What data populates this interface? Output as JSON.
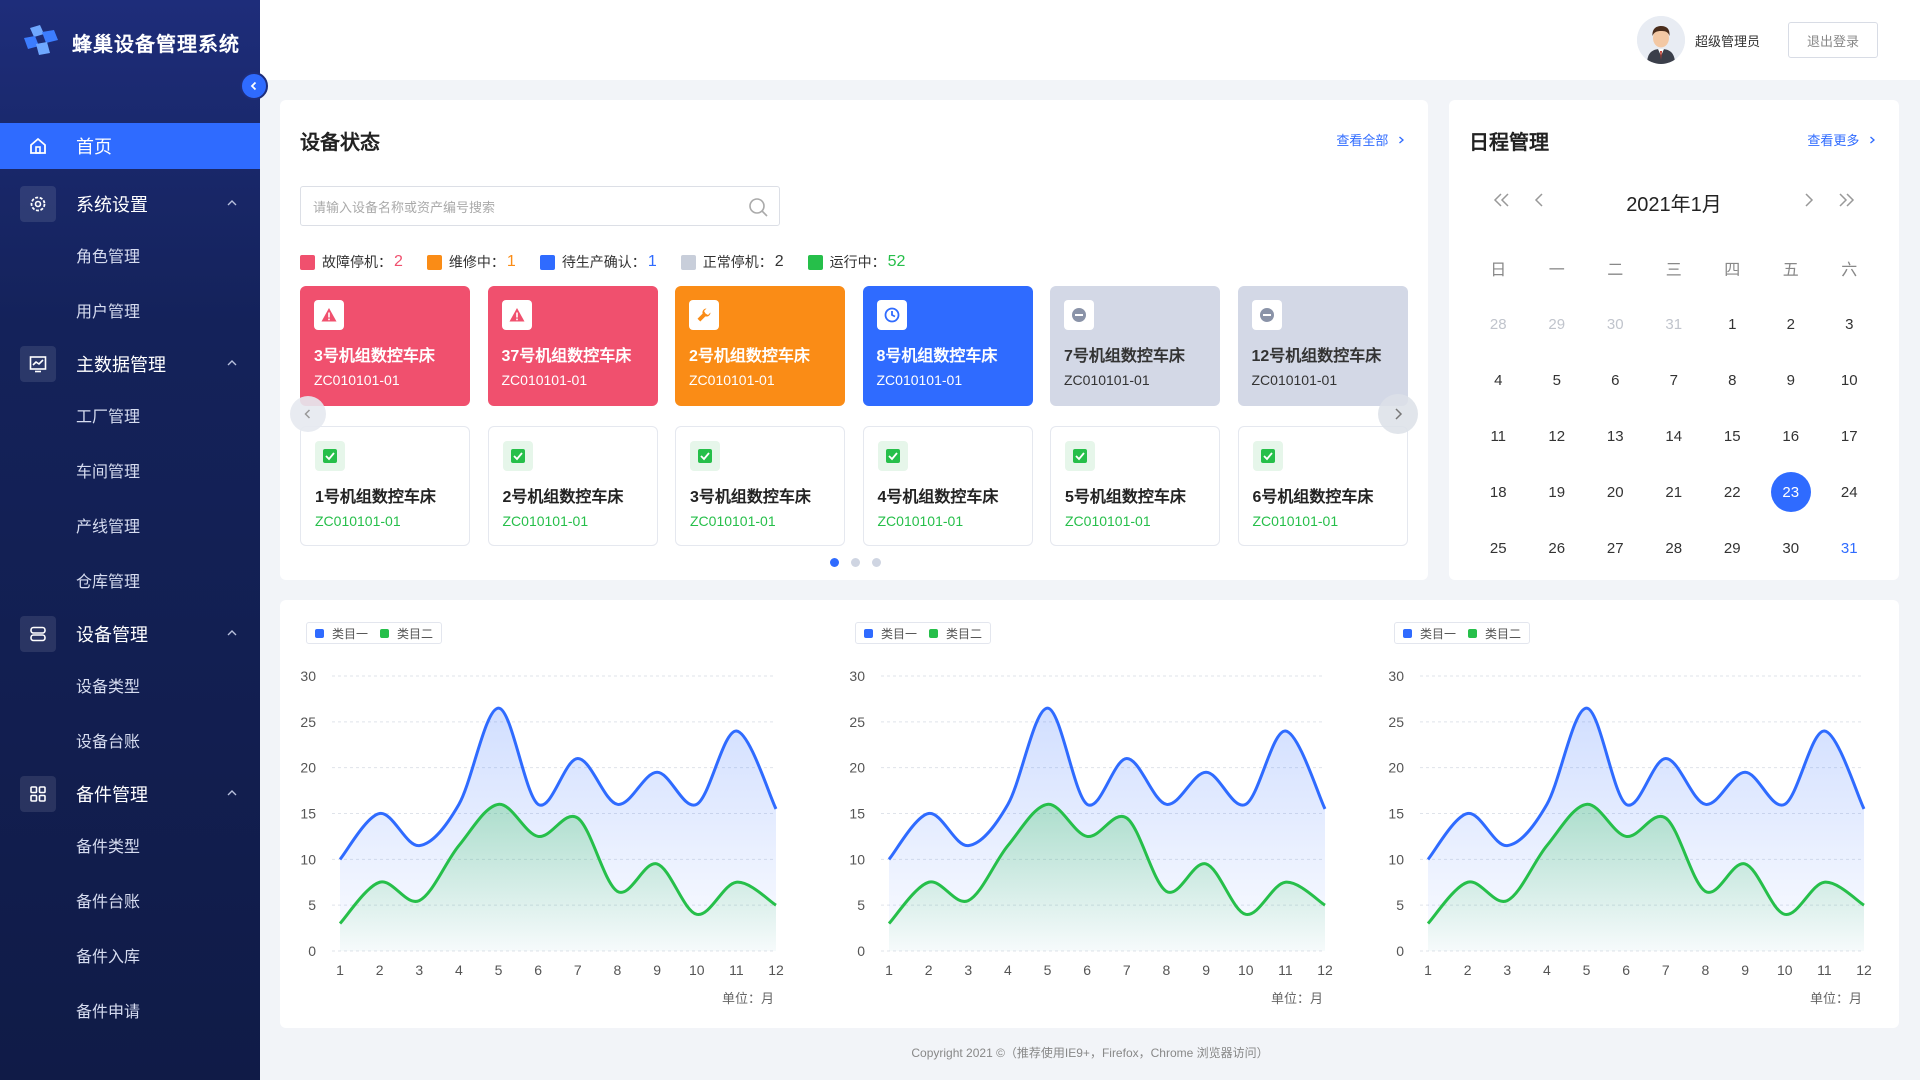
{
  "app": {
    "title": "蜂巢设备管理系统"
  },
  "sidebar": {
    "home": "首页",
    "groups": [
      {
        "label": "系统设置",
        "icon": "gear-icon",
        "items": [
          "角色管理",
          "用户管理"
        ]
      },
      {
        "label": "主数据管理",
        "icon": "chart-monitor-icon",
        "items": [
          "工厂管理",
          "车间管理",
          "产线管理",
          "仓库管理"
        ]
      },
      {
        "label": "设备管理",
        "icon": "server-icon",
        "items": [
          "设备类型",
          "设备台账"
        ]
      },
      {
        "label": "备件管理",
        "icon": "grid-icon",
        "items": [
          "备件类型",
          "备件台账",
          "备件入库",
          "备件申请"
        ]
      }
    ]
  },
  "header": {
    "user_name": "超级管理员",
    "logout_label": "退出登录"
  },
  "device_status": {
    "title": "设备状态",
    "view_all": "查看全部",
    "search_placeholder": "请输入设备名称或资产编号搜索",
    "legend": [
      {
        "label": "故障停机：",
        "count": "2",
        "color": "#f0506e"
      },
      {
        "label": "维修中：",
        "count": "1",
        "color": "#fa8c16"
      },
      {
        "label": "待生产确认：",
        "count": "1",
        "color": "#2f6bff"
      },
      {
        "label": "正常停机：",
        "count": "2",
        "color": "#c8ceda"
      },
      {
        "label": "运行中：",
        "count": "52",
        "color": "#26bf4a"
      }
    ],
    "tiles_top": [
      {
        "name": "3号机组数控车床",
        "code": "ZC010101-01",
        "status": "fault",
        "icon": "warning-icon"
      },
      {
        "name": "37号机组数控车床",
        "code": "ZC010101-01",
        "status": "fault",
        "icon": "warning-icon"
      },
      {
        "name": "2号机组数控车床",
        "code": "ZC010101-01",
        "status": "repair",
        "icon": "wrench-icon"
      },
      {
        "name": "8号机组数控车床",
        "code": "ZC010101-01",
        "status": "pending",
        "icon": "clock-icon"
      },
      {
        "name": "7号机组数控车床",
        "code": "ZC010101-01",
        "status": "stopped",
        "icon": "minus-circle-icon"
      },
      {
        "name": "12号机组数控车床",
        "code": "ZC010101-01",
        "status": "stopped",
        "icon": "minus-circle-icon"
      }
    ],
    "tiles_bottom": [
      {
        "name": "1号机组数控车床",
        "code": "ZC010101-01"
      },
      {
        "name": "2号机组数控车床",
        "code": "ZC010101-01"
      },
      {
        "name": "3号机组数控车床",
        "code": "ZC010101-01"
      },
      {
        "name": "4号机组数控车床",
        "code": "ZC010101-01"
      },
      {
        "name": "5号机组数控车床",
        "code": "ZC010101-01"
      },
      {
        "name": "6号机组数控车床",
        "code": "ZC010101-01"
      }
    ]
  },
  "schedule": {
    "title": "日程管理",
    "view_more": "查看更多",
    "month": "2021年1月",
    "weekdays": [
      "日",
      "一",
      "二",
      "三",
      "四",
      "五",
      "六"
    ],
    "weeks": [
      [
        "28",
        "29",
        "30",
        "31",
        "1",
        "2",
        "3"
      ],
      [
        "4",
        "5",
        "6",
        "7",
        "8",
        "9",
        "10"
      ],
      [
        "11",
        "12",
        "13",
        "14",
        "15",
        "16",
        "17"
      ],
      [
        "18",
        "19",
        "20",
        "21",
        "22",
        "23",
        "24"
      ],
      [
        "25",
        "26",
        "27",
        "28",
        "29",
        "30",
        "31"
      ]
    ],
    "today": "23"
  },
  "colors": {
    "accent": "#2f6bff",
    "series1": "#2f6bff",
    "series2": "#26bf4a",
    "fault": "#f0506e",
    "repair": "#fa8c16",
    "stopped": "#d3d8e6"
  },
  "unit_label": "单位：月",
  "chart_data": [
    {
      "type": "area",
      "categories": [
        "1",
        "2",
        "3",
        "4",
        "5",
        "6",
        "7",
        "8",
        "9",
        "10",
        "11",
        "12"
      ],
      "series": [
        {
          "name": "类目一",
          "values": [
            10,
            15,
            11.5,
            16,
            26.5,
            16,
            21,
            16,
            19.5,
            16,
            24,
            15.5
          ]
        },
        {
          "name": "类目二",
          "values": [
            3,
            7.5,
            5.5,
            11.5,
            16,
            12.5,
            14.5,
            6.5,
            9.5,
            4,
            7.5,
            5
          ]
        }
      ],
      "ylim": [
        0,
        30
      ],
      "yticks": [
        0,
        5,
        10,
        15,
        20,
        25,
        30
      ],
      "grid": true,
      "legend": "top-left"
    },
    {
      "type": "area",
      "categories": [
        "1",
        "2",
        "3",
        "4",
        "5",
        "6",
        "7",
        "8",
        "9",
        "10",
        "11",
        "12"
      ],
      "series": [
        {
          "name": "类目一",
          "values": [
            10,
            15,
            11.5,
            16,
            26.5,
            16,
            21,
            16,
            19.5,
            16,
            24,
            15.5
          ]
        },
        {
          "name": "类目二",
          "values": [
            3,
            7.5,
            5.5,
            11.5,
            16,
            12.5,
            14.5,
            6.5,
            9.5,
            4,
            7.5,
            5
          ]
        }
      ],
      "ylim": [
        0,
        30
      ],
      "yticks": [
        0,
        5,
        10,
        15,
        20,
        25,
        30
      ],
      "grid": true,
      "legend": "top-left"
    },
    {
      "type": "area",
      "categories": [
        "1",
        "2",
        "3",
        "4",
        "5",
        "6",
        "7",
        "8",
        "9",
        "10",
        "11",
        "12"
      ],
      "series": [
        {
          "name": "类目一",
          "values": [
            10,
            15,
            11.5,
            16,
            26.5,
            16,
            21,
            16,
            19.5,
            16,
            24,
            15.5
          ]
        },
        {
          "name": "类目二",
          "values": [
            3,
            7.5,
            5.5,
            11.5,
            16,
            12.5,
            14.5,
            6.5,
            9.5,
            4,
            7.5,
            5
          ]
        }
      ],
      "ylim": [
        0,
        30
      ],
      "yticks": [
        0,
        5,
        10,
        15,
        20,
        25,
        30
      ],
      "grid": true,
      "legend": "top-left"
    }
  ],
  "footer": "Copyright 2021 ©（推荐使用IE9+，Firefox，Chrome 浏览器访问）"
}
